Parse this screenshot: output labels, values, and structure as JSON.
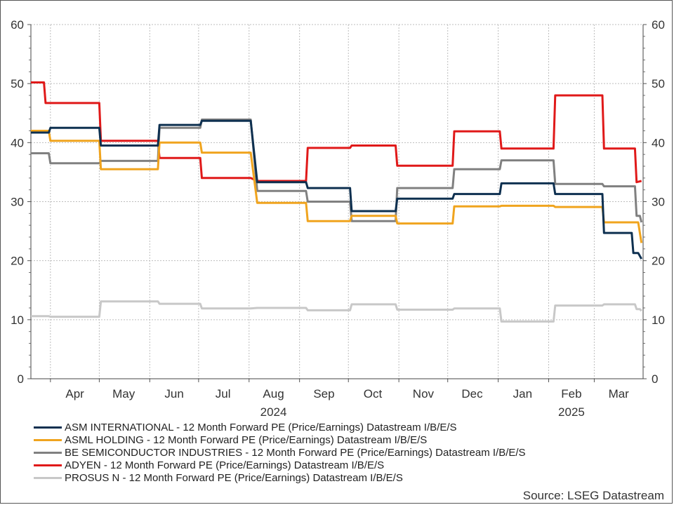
{
  "chart_data": {
    "type": "line",
    "title": "",
    "y_axis": {
      "min": 0,
      "max": 60,
      "ticks": [
        0,
        10,
        20,
        30,
        40,
        50,
        60
      ],
      "both_sides": true
    },
    "x_axis": {
      "start": "2024-03-20",
      "end": "2025-03-31",
      "month_ticks": [
        "2024-04-01",
        "2024-05-01",
        "2024-06-01",
        "2024-07-01",
        "2024-08-01",
        "2024-09-01",
        "2024-10-01",
        "2024-11-01",
        "2024-12-01",
        "2025-01-01",
        "2025-02-01",
        "2025-03-01"
      ],
      "month_labels": [
        {
          "label": "Apr",
          "date": "2024-04-16"
        },
        {
          "label": "May",
          "date": "2024-05-16"
        },
        {
          "label": "Jun",
          "date": "2024-06-16"
        },
        {
          "label": "Jul",
          "date": "2024-07-16"
        },
        {
          "label": "Aug",
          "date": "2024-08-16"
        },
        {
          "label": "Sep",
          "date": "2024-09-16"
        },
        {
          "label": "Oct",
          "date": "2024-10-16"
        },
        {
          "label": "Nov",
          "date": "2024-11-16"
        },
        {
          "label": "Dec",
          "date": "2024-12-16"
        },
        {
          "label": "Jan",
          "date": "2025-01-16"
        },
        {
          "label": "Feb",
          "date": "2025-02-15"
        },
        {
          "label": "Mar",
          "date": "2025-03-16"
        }
      ],
      "year_labels": [
        {
          "label": "2024",
          "date": "2024-08-16"
        },
        {
          "label": "2025",
          "date": "2025-02-15"
        }
      ]
    },
    "grid": true,
    "legend_position": "bottom",
    "series": [
      {
        "name": "ASM INTERNATIONAL - 12 Month Forward PE (Price/Earnings) Datastream I/B/E/S",
        "color": "#0e3050",
        "points": [
          [
            "2024-03-20",
            41.7
          ],
          [
            "2024-03-31",
            41.7
          ],
          [
            "2024-04-01",
            42.5
          ],
          [
            "2024-05-01",
            42.5
          ],
          [
            "2024-05-02",
            39.5
          ],
          [
            "2024-06-06",
            39.5
          ],
          [
            "2024-06-07",
            43
          ],
          [
            "2024-07-02",
            43
          ],
          [
            "2024-07-03",
            43.7
          ],
          [
            "2024-08-02",
            43.7
          ],
          [
            "2024-08-06",
            33.3
          ],
          [
            "2024-09-05",
            33.3
          ],
          [
            "2024-09-06",
            32.3
          ],
          [
            "2024-10-02",
            32.3
          ],
          [
            "2024-10-03",
            28.4
          ],
          [
            "2024-10-30",
            28.4
          ],
          [
            "2024-10-31",
            30.5
          ],
          [
            "2024-12-04",
            30.5
          ],
          [
            "2024-12-05",
            31.3
          ],
          [
            "2025-01-02",
            31.3
          ],
          [
            "2025-01-03",
            33.1
          ],
          [
            "2025-02-04",
            33.1
          ],
          [
            "2025-02-05",
            31.3
          ],
          [
            "2025-03-06",
            31.3
          ],
          [
            "2025-03-07",
            24.7
          ],
          [
            "2025-03-24",
            24.7
          ],
          [
            "2025-03-25",
            21.3
          ],
          [
            "2025-03-28",
            21.3
          ],
          [
            "2025-03-30",
            20.3
          ]
        ]
      },
      {
        "name": "ASML HOLDING - 12 Month Forward PE (Price/Earnings) Datastream I/B/E/S",
        "color": "#f0a41e",
        "points": [
          [
            "2024-03-20",
            42
          ],
          [
            "2024-03-31",
            42
          ],
          [
            "2024-04-01",
            40.3
          ],
          [
            "2024-05-01",
            40.3
          ],
          [
            "2024-05-02",
            35.5
          ],
          [
            "2024-06-06",
            35.5
          ],
          [
            "2024-06-07",
            40
          ],
          [
            "2024-07-02",
            40
          ],
          [
            "2024-07-03",
            38.3
          ],
          [
            "2024-08-02",
            38.3
          ],
          [
            "2024-08-06",
            29.8
          ],
          [
            "2024-09-05",
            29.8
          ],
          [
            "2024-09-06",
            26.7
          ],
          [
            "2024-10-02",
            26.7
          ],
          [
            "2024-10-03",
            27.6
          ],
          [
            "2024-10-30",
            27.6
          ],
          [
            "2024-10-31",
            26.3
          ],
          [
            "2024-12-04",
            26.3
          ],
          [
            "2024-12-05",
            29.2
          ],
          [
            "2025-01-02",
            29.2
          ],
          [
            "2025-01-03",
            29.3
          ],
          [
            "2025-02-04",
            29.3
          ],
          [
            "2025-02-05",
            29.1
          ],
          [
            "2025-03-06",
            29.1
          ],
          [
            "2025-03-07",
            26.5
          ],
          [
            "2025-03-28",
            26.5
          ],
          [
            "2025-03-30",
            23
          ]
        ]
      },
      {
        "name": "BE SEMICONDUCTOR INDUSTRIES - 12 Month Forward PE (Price/Earnings) Datastream I/B/E/S",
        "color": "#808080",
        "points": [
          [
            "2024-03-20",
            38.2
          ],
          [
            "2024-03-31",
            38.2
          ],
          [
            "2024-04-01",
            36.5
          ],
          [
            "2024-05-01",
            36.5
          ],
          [
            "2024-05-02",
            36.9
          ],
          [
            "2024-06-06",
            36.9
          ],
          [
            "2024-06-07",
            42.5
          ],
          [
            "2024-07-02",
            42.5
          ],
          [
            "2024-07-03",
            43.9
          ],
          [
            "2024-08-02",
            43.9
          ],
          [
            "2024-08-06",
            31.8
          ],
          [
            "2024-09-05",
            31.8
          ],
          [
            "2024-09-06",
            30
          ],
          [
            "2024-10-02",
            30
          ],
          [
            "2024-10-03",
            26.7
          ],
          [
            "2024-10-30",
            26.7
          ],
          [
            "2024-10-31",
            32.3
          ],
          [
            "2024-12-04",
            32.3
          ],
          [
            "2024-12-05",
            35.5
          ],
          [
            "2025-01-02",
            35.5
          ],
          [
            "2025-01-03",
            37
          ],
          [
            "2025-02-04",
            37
          ],
          [
            "2025-02-05",
            33
          ],
          [
            "2025-03-06",
            33
          ],
          [
            "2025-03-07",
            32.6
          ],
          [
            "2025-03-26",
            32.6
          ],
          [
            "2025-03-27",
            27.6
          ],
          [
            "2025-03-29",
            27.6
          ],
          [
            "2025-03-30",
            26.5
          ]
        ]
      },
      {
        "name": "ADYEN - 12 Month Forward PE (Price/Earnings) Datastream I/B/E/S",
        "color": "#e01919",
        "points": [
          [
            "2024-03-20",
            50.2
          ],
          [
            "2024-03-28",
            50.2
          ],
          [
            "2024-03-29",
            46.7
          ],
          [
            "2024-05-01",
            46.7
          ],
          [
            "2024-05-02",
            40.3
          ],
          [
            "2024-06-06",
            40.3
          ],
          [
            "2024-06-07",
            37.4
          ],
          [
            "2024-07-02",
            37.4
          ],
          [
            "2024-07-03",
            34
          ],
          [
            "2024-08-02",
            34
          ],
          [
            "2024-08-06",
            33.5
          ],
          [
            "2024-09-05",
            33.5
          ],
          [
            "2024-09-06",
            39.1
          ],
          [
            "2024-10-02",
            39.1
          ],
          [
            "2024-10-03",
            39.5
          ],
          [
            "2024-10-30",
            39.5
          ],
          [
            "2024-10-31",
            36.1
          ],
          [
            "2024-12-04",
            36.1
          ],
          [
            "2024-12-05",
            41.9
          ],
          [
            "2025-01-02",
            41.9
          ],
          [
            "2025-01-03",
            39
          ],
          [
            "2025-02-04",
            39
          ],
          [
            "2025-02-05",
            48
          ],
          [
            "2025-03-06",
            48
          ],
          [
            "2025-03-07",
            39
          ],
          [
            "2025-03-26",
            39
          ],
          [
            "2025-03-27",
            33.3
          ],
          [
            "2025-03-30",
            33.5
          ]
        ]
      },
      {
        "name": "PROSUS N - 12 Month Forward PE (Price/Earnings) Datastream I/B/E/S",
        "color": "#c8c8c8",
        "points": [
          [
            "2024-03-20",
            10.6
          ],
          [
            "2024-03-31",
            10.6
          ],
          [
            "2024-04-01",
            10.5
          ],
          [
            "2024-05-01",
            10.5
          ],
          [
            "2024-05-02",
            13.1
          ],
          [
            "2024-06-06",
            13.1
          ],
          [
            "2024-06-07",
            12.7
          ],
          [
            "2024-07-02",
            12.7
          ],
          [
            "2024-07-03",
            11.9
          ],
          [
            "2024-08-02",
            11.9
          ],
          [
            "2024-08-06",
            12
          ],
          [
            "2024-09-05",
            12
          ],
          [
            "2024-09-06",
            11.6
          ],
          [
            "2024-10-02",
            11.6
          ],
          [
            "2024-10-03",
            12.6
          ],
          [
            "2024-10-30",
            12.6
          ],
          [
            "2024-10-31",
            11.7
          ],
          [
            "2024-12-04",
            11.7
          ],
          [
            "2024-12-05",
            11.9
          ],
          [
            "2025-01-02",
            11.9
          ],
          [
            "2025-01-03",
            9.7
          ],
          [
            "2025-02-04",
            9.7
          ],
          [
            "2025-02-05",
            12.4
          ],
          [
            "2025-03-06",
            12.4
          ],
          [
            "2025-03-07",
            12.6
          ],
          [
            "2025-03-26",
            12.6
          ],
          [
            "2025-03-27",
            11.8
          ],
          [
            "2025-03-29",
            11.8
          ],
          [
            "2025-03-30",
            11.5
          ]
        ]
      }
    ]
  },
  "source": "Source: LSEG Datastream"
}
